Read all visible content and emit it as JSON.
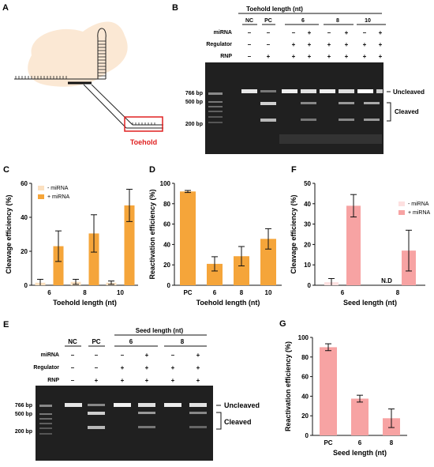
{
  "colors": {
    "orange": "#f5a53a",
    "orange_light": "#fbe0c0",
    "pink": "#f7a3a3",
    "pink_light": "#fde0e0",
    "blob": "#fbe8d4",
    "toehold_red": "#e02020",
    "gel_bg": "#202020"
  },
  "panelA": {
    "label": "A",
    "toehold_label": "Toehold"
  },
  "panelB": {
    "label": "B",
    "header_group": "Toehold length (nt)",
    "lanes": [
      "NC",
      "PC",
      "6",
      "8",
      "10"
    ],
    "rows": [
      {
        "name": "miRNA",
        "signs": [
          "–",
          "–",
          "–",
          "+",
          "–",
          "+",
          "–",
          "+"
        ]
      },
      {
        "name": "Regulator",
        "signs": [
          "–",
          "–",
          "+",
          "+",
          "+",
          "+",
          "+",
          "+"
        ]
      },
      {
        "name": "RNP",
        "signs": [
          "–",
          "+",
          "+",
          "+",
          "+",
          "+",
          "+",
          "+"
        ]
      }
    ],
    "markers": [
      "766 bp",
      "500 bp",
      "200 bp"
    ],
    "uncleaved": "Uncleaved",
    "cleaved": "Cleaved"
  },
  "panelE": {
    "label": "E",
    "header_group": "Seed length (nt)",
    "lanes": [
      "NC",
      "PC",
      "6",
      "8"
    ],
    "rows": [
      {
        "name": "miRNA",
        "signs": [
          "–",
          "–",
          "–",
          "+",
          "–",
          "+"
        ]
      },
      {
        "name": "Regulator",
        "signs": [
          "–",
          "–",
          "+",
          "+",
          "+",
          "+"
        ]
      },
      {
        "name": "RNP",
        "signs": [
          "–",
          "+",
          "+",
          "+",
          "+",
          "+"
        ]
      }
    ],
    "markers": [
      "766 bp",
      "500 bp",
      "200 bp"
    ],
    "uncleaved": "Uncleaved",
    "cleaved": "Cleaved"
  },
  "chart_data": [
    {
      "panel": "C",
      "type": "bar",
      "categories": [
        "6",
        "8",
        "10"
      ],
      "series": [
        {
          "name": "- miRNA",
          "values": [
            1.5,
            2,
            1.5
          ],
          "errors": [
            2,
            1.5,
            1
          ]
        },
        {
          "name": "+ miRNA",
          "values": [
            23,
            30.5,
            47
          ],
          "errors": [
            9,
            11,
            9.5
          ]
        }
      ],
      "xlabel": "Toehold length (nt)",
      "ylabel": "Cleavage efficiency (%)",
      "ylim": [
        0,
        60
      ],
      "yticks": [
        0,
        20,
        40,
        60
      ],
      "legend": "top-left"
    },
    {
      "panel": "D",
      "type": "bar",
      "categories": [
        "PC",
        "6",
        "8",
        "10"
      ],
      "values": [
        92,
        21,
        28.5,
        45.5
      ],
      "errors": [
        1,
        7,
        9.5,
        10
      ],
      "xlabel": "Toehold length (nt)",
      "ylabel": "Reactivation efficiency (%)",
      "ylim": [
        0,
        100
      ],
      "yticks": [
        0,
        20,
        40,
        60,
        80,
        100
      ]
    },
    {
      "panel": "F",
      "type": "bar",
      "categories": [
        "6",
        "8"
      ],
      "series": [
        {
          "name": "- miRNA",
          "values": [
            1.5,
            0
          ],
          "errors": [
            1.8,
            0
          ]
        },
        {
          "name": "+ miRNA",
          "values": [
            39,
            17
          ],
          "errors": [
            5.5,
            10
          ]
        }
      ],
      "annotations": [
        {
          "category": "8",
          "series": "- miRNA",
          "text": "N.D"
        }
      ],
      "xlabel": "Seed length (nt)",
      "ylabel": "Cleavage efficiency (%)",
      "ylim": [
        0,
        50
      ],
      "yticks": [
        0,
        10,
        20,
        30,
        40,
        50
      ],
      "legend": "top-right"
    },
    {
      "panel": "G",
      "type": "bar",
      "categories": [
        "PC",
        "6",
        "8"
      ],
      "values": [
        90,
        37.5,
        17.5
      ],
      "errors": [
        3.5,
        3.5,
        9.5
      ],
      "xlabel": "Seed length (nt)",
      "ylabel": "Reactivation efficiency (%)",
      "ylim": [
        0,
        100
      ],
      "yticks": [
        0,
        20,
        40,
        60,
        80,
        100
      ]
    }
  ],
  "panel_labels": {
    "C": "C",
    "D": "D",
    "F": "F",
    "G": "G"
  }
}
